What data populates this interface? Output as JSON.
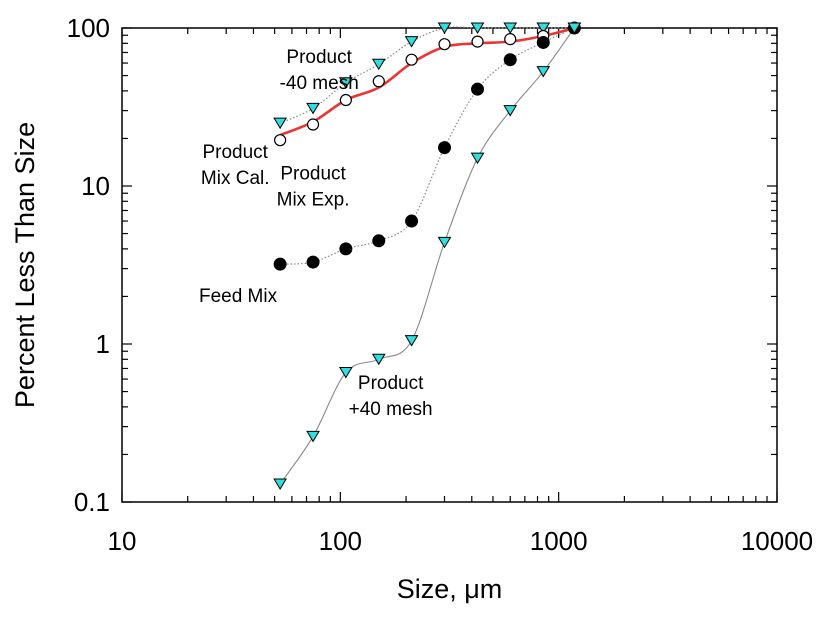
{
  "chart_data": {
    "type": "line",
    "title": "",
    "xlabel": "Size, μm",
    "ylabel": "Percent Less Than Size",
    "x_scale": "log",
    "y_scale": "log",
    "xlim": [
      10,
      10000
    ],
    "ylim": [
      0.1,
      100
    ],
    "x_ticks": [
      10,
      100,
      1000,
      10000
    ],
    "y_ticks": [
      0.1,
      1,
      10,
      100
    ],
    "x_tick_labels": [
      "10",
      "100",
      "1000",
      "10000"
    ],
    "y_tick_labels": [
      "0.1",
      "1",
      "10",
      "100"
    ],
    "grid": false,
    "series": [
      {
        "name": "Product -40 mesh",
        "marker": "triangle-down",
        "marker_fill": "#33dddd",
        "line": "dotted",
        "line_color": "#888888",
        "x": [
          53,
          75,
          106,
          150,
          212,
          300,
          425,
          600,
          850,
          1180
        ],
        "y": [
          25,
          31,
          45,
          59,
          82,
          100,
          100,
          100,
          100,
          100
        ]
      },
      {
        "name": "Product Mix Exp.",
        "marker": "circle-open",
        "marker_fill": "#ffffff",
        "line": "none",
        "x": [
          53,
          75,
          106,
          150,
          212,
          300,
          425,
          600,
          850,
          1180
        ],
        "y": [
          19.5,
          24.5,
          35,
          46,
          63,
          79,
          82,
          85,
          89,
          100
        ]
      },
      {
        "name": "Product Mix Cal.",
        "marker": "none",
        "line": "solid",
        "line_color": "#ee3333",
        "x": [
          53,
          75,
          106,
          150,
          212,
          300,
          425,
          600,
          850,
          1180
        ],
        "y": [
          21,
          25.5,
          35,
          42,
          60,
          76,
          80,
          82,
          89,
          100
        ]
      },
      {
        "name": "Feed Mix",
        "marker": "circle-filled",
        "marker_fill": "#000000",
        "line": "dotted",
        "line_color": "#888888",
        "x": [
          53,
          75,
          106,
          150,
          212,
          300,
          425,
          600,
          850,
          1180
        ],
        "y": [
          3.2,
          3.3,
          4.0,
          4.5,
          6.0,
          17.5,
          41,
          63,
          81,
          100
        ]
      },
      {
        "name": "Product +40 mesh",
        "marker": "triangle-down",
        "marker_fill": "#33dddd",
        "line": "solid-thin",
        "line_color": "#888888",
        "x": [
          53,
          75,
          106,
          150,
          212,
          300,
          425,
          600,
          850,
          1180
        ],
        "y": [
          0.13,
          0.26,
          0.66,
          0.8,
          1.05,
          4.4,
          15,
          30,
          53,
          100
        ]
      }
    ],
    "annotations": [
      {
        "lines": [
          "Product",
          "-40 mesh"
        ],
        "anchor_x": 80,
        "anchor_y": 60
      },
      {
        "lines": [
          "Product",
          "Mix Cal."
        ],
        "anchor_x": 33,
        "anchor_y": 15
      },
      {
        "lines": [
          "Product",
          "Mix Exp."
        ],
        "anchor_x": 75,
        "anchor_y": 11
      },
      {
        "lines": [
          "Feed Mix"
        ],
        "anchor_x": 34,
        "anchor_y": 1.85
      },
      {
        "lines": [
          "Product",
          "+40 mesh"
        ],
        "anchor_x": 170,
        "anchor_y": 0.52
      }
    ]
  }
}
